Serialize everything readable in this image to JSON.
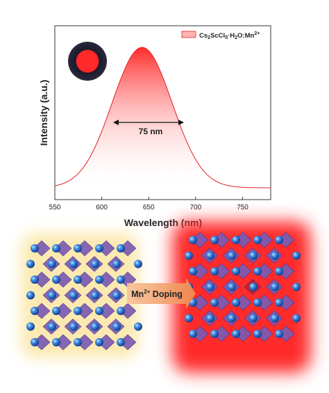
{
  "chart_data": {
    "type": "line",
    "xlabel": "Wavelength (nm)",
    "ylabel": "Intensity (a.u.)",
    "xlim": [
      550,
      780
    ],
    "xticks": [
      550,
      600,
      650,
      700,
      750
    ],
    "x_ticks_labels": [
      "550",
      "600",
      "650",
      "700",
      "750"
    ],
    "y_ticks_shown": false,
    "grid": false,
    "legend_position": "top-right",
    "series": [
      {
        "name_main": "Cs",
        "name_sub1": "2",
        "name_mid": "ScCl",
        "name_sub2": "5",
        "name_mid2": "·H",
        "name_sub3": "2",
        "name_tail": "O:Mn",
        "name_sup": "2+",
        "color": "#e02020",
        "peak_nm": 643,
        "fwhm_nm": 75,
        "x": [
          550,
          560,
          570,
          580,
          590,
          600,
          610,
          620,
          630,
          640,
          643,
          650,
          660,
          670,
          680,
          690,
          700,
          710,
          720,
          730,
          740,
          750,
          760,
          770,
          780
        ],
        "y": [
          0.01,
          0.02,
          0.04,
          0.08,
          0.15,
          0.26,
          0.42,
          0.62,
          0.84,
          0.98,
          1.0,
          0.98,
          0.88,
          0.72,
          0.55,
          0.4,
          0.27,
          0.17,
          0.1,
          0.06,
          0.035,
          0.02,
          0.012,
          0.007,
          0.004
        ]
      }
    ],
    "annotation": "75 nm"
  },
  "doping_label_main": "Mn",
  "doping_label_sup": "2+",
  "doping_label_tail": " Doping",
  "colors": {
    "emission": "#e02020",
    "glow_left": "#fbe9b0",
    "glow_right": "#ff2a2a",
    "sphere": "#2a6fd6",
    "octahedron": "#7b5bb3",
    "arrow": "#f4b183"
  }
}
